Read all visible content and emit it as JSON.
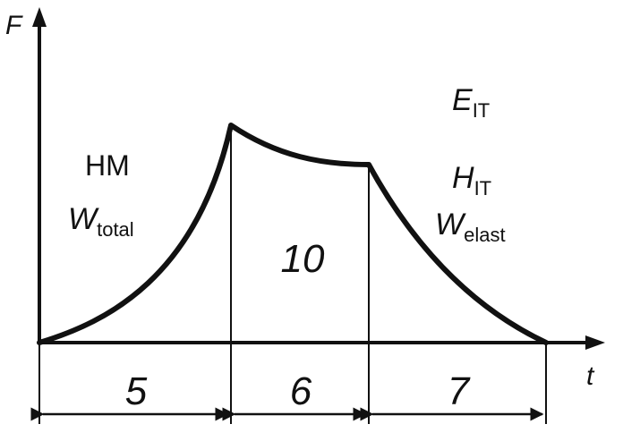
{
  "axes": {
    "y_label": "F",
    "x_label": "t"
  },
  "phase_loading": {
    "labels": [
      "HM",
      "W",
      "total"
    ]
  },
  "phase_unloading": {
    "labels": [
      "E",
      "IT",
      "H",
      "IT",
      "W",
      "elast"
    ]
  },
  "hold_marker": "10",
  "intervals": [
    "5",
    "6",
    "7"
  ],
  "colors": {
    "line": "#111111",
    "background": "#ffffff"
  }
}
